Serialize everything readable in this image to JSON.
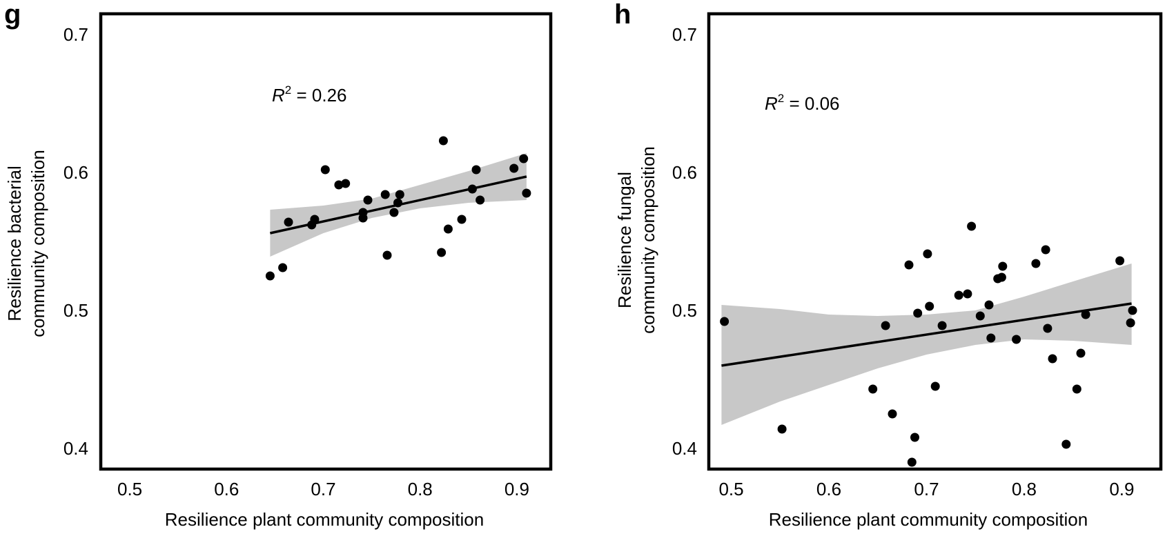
{
  "figure": {
    "panels": [
      {
        "panel_label": "g",
        "annotation": {
          "r_symbol": "R",
          "sup": "2",
          "value_text": " = 0.26"
        },
        "xlabel": "Resilience plant community composition",
        "ylabel_lines": [
          "Resilience bacterial",
          "community composition"
        ]
      },
      {
        "panel_label": "h",
        "annotation": {
          "r_symbol": "R",
          "sup": "2",
          "value_text": " = 0.06"
        },
        "xlabel": "Resilience plant community composition",
        "ylabel_lines": [
          "Resilience fungal",
          "community composition"
        ]
      }
    ]
  },
  "colors": {
    "points": "#000000",
    "fit_line": "#000000",
    "confidence_band": "#c8c8c8",
    "frame": "#000000"
  },
  "chart_data": [
    {
      "type": "scatter",
      "title": "",
      "xlabel": "Resilience plant community composition",
      "ylabel": "Resilience bacterial community composition",
      "xlim": [
        0.47,
        0.935
      ],
      "ylim": [
        0.385,
        0.715
      ],
      "xticks": [
        0.5,
        0.6,
        0.7,
        0.8,
        0.9
      ],
      "xtick_labels": [
        "0.5",
        "0.6",
        "0.7",
        "0.8",
        "0.9"
      ],
      "yticks": [
        0.4,
        0.5,
        0.6,
        0.7
      ],
      "ytick_labels": [
        "0.4",
        "0.5",
        "0.6",
        "0.7"
      ],
      "grid": false,
      "r_squared": 0.26,
      "points": [
        [
          0.645,
          0.525
        ],
        [
          0.658,
          0.531
        ],
        [
          0.664,
          0.564
        ],
        [
          0.688,
          0.562
        ],
        [
          0.691,
          0.566
        ],
        [
          0.702,
          0.602
        ],
        [
          0.716,
          0.591
        ],
        [
          0.723,
          0.592
        ],
        [
          0.741,
          0.567
        ],
        [
          0.741,
          0.571
        ],
        [
          0.746,
          0.58
        ],
        [
          0.764,
          0.584
        ],
        [
          0.766,
          0.54
        ],
        [
          0.773,
          0.571
        ],
        [
          0.777,
          0.578
        ],
        [
          0.779,
          0.584
        ],
        [
          0.822,
          0.542
        ],
        [
          0.824,
          0.623
        ],
        [
          0.829,
          0.559
        ],
        [
          0.843,
          0.566
        ],
        [
          0.854,
          0.588
        ],
        [
          0.858,
          0.602
        ],
        [
          0.862,
          0.58
        ],
        [
          0.897,
          0.603
        ],
        [
          0.907,
          0.61
        ],
        [
          0.91,
          0.585
        ]
      ],
      "fit": {
        "x": [
          0.645,
          0.91
        ],
        "y": [
          0.556,
          0.597
        ]
      },
      "ci_band": {
        "x": [
          0.645,
          0.7,
          0.75,
          0.8,
          0.85,
          0.91
        ],
        "lower": [
          0.539,
          0.556,
          0.567,
          0.574,
          0.578,
          0.58
        ],
        "upper": [
          0.573,
          0.576,
          0.581,
          0.591,
          0.601,
          0.614
        ]
      }
    },
    {
      "type": "scatter",
      "title": "",
      "xlabel": "Resilience plant community composition",
      "ylabel": "Resilience fungal community composition",
      "xlim": [
        0.477,
        0.94
      ],
      "ylim": [
        0.385,
        0.715
      ],
      "xticks": [
        0.5,
        0.6,
        0.7,
        0.8,
        0.9
      ],
      "xtick_labels": [
        "0.5",
        "0.6",
        "0.7",
        "0.8",
        "0.9"
      ],
      "yticks": [
        0.4,
        0.5,
        0.6,
        0.7
      ],
      "ytick_labels": [
        "0.4",
        "0.5",
        "0.6",
        "0.7"
      ],
      "grid": false,
      "r_squared": 0.06,
      "points": [
        [
          0.493,
          0.492
        ],
        [
          0.552,
          0.414
        ],
        [
          0.645,
          0.443
        ],
        [
          0.658,
          0.489
        ],
        [
          0.665,
          0.425
        ],
        [
          0.682,
          0.533
        ],
        [
          0.685,
          0.39
        ],
        [
          0.688,
          0.408
        ],
        [
          0.691,
          0.498
        ],
        [
          0.701,
          0.541
        ],
        [
          0.703,
          0.503
        ],
        [
          0.709,
          0.445
        ],
        [
          0.716,
          0.489
        ],
        [
          0.733,
          0.511
        ],
        [
          0.742,
          0.512
        ],
        [
          0.746,
          0.561
        ],
        [
          0.755,
          0.496
        ],
        [
          0.764,
          0.504
        ],
        [
          0.766,
          0.48
        ],
        [
          0.773,
          0.523
        ],
        [
          0.777,
          0.524
        ],
        [
          0.778,
          0.532
        ],
        [
          0.792,
          0.479
        ],
        [
          0.812,
          0.534
        ],
        [
          0.822,
          0.544
        ],
        [
          0.824,
          0.487
        ],
        [
          0.829,
          0.465
        ],
        [
          0.843,
          0.403
        ],
        [
          0.854,
          0.443
        ],
        [
          0.858,
          0.469
        ],
        [
          0.863,
          0.497
        ],
        [
          0.898,
          0.536
        ],
        [
          0.909,
          0.491
        ],
        [
          0.911,
          0.5
        ]
      ],
      "fit": {
        "x": [
          0.49,
          0.91
        ],
        "y": [
          0.46,
          0.505
        ]
      },
      "ci_band": {
        "x": [
          0.49,
          0.55,
          0.6,
          0.65,
          0.7,
          0.75,
          0.8,
          0.85,
          0.91
        ],
        "lower": [
          0.417,
          0.434,
          0.446,
          0.458,
          0.468,
          0.475,
          0.479,
          0.478,
          0.475
        ],
        "upper": [
          0.504,
          0.501,
          0.497,
          0.496,
          0.497,
          0.5,
          0.51,
          0.521,
          0.534
        ]
      }
    }
  ]
}
